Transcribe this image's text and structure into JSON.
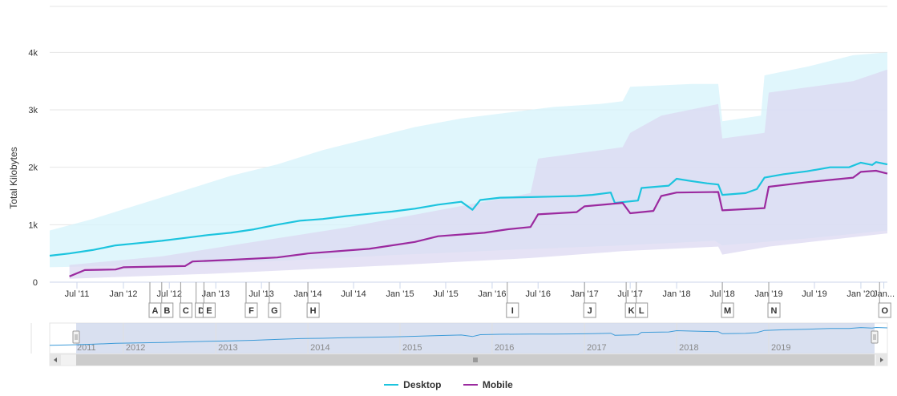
{
  "chart_data": {
    "type": "line",
    "ylabel": "Total Kilobytes",
    "ylim": [
      0,
      4800
    ],
    "xlim": [
      "2011-03-15",
      "2020-04-15"
    ],
    "y_ticks": [
      0,
      1000,
      2000,
      3000,
      4000
    ],
    "y_tick_labels": [
      "0",
      "1k",
      "2k",
      "3k",
      "4k"
    ],
    "x_ticks": [
      {
        "date": "2011-07-01",
        "label": "Jul '11"
      },
      {
        "date": "2012-01-01",
        "label": "Jan '12"
      },
      {
        "date": "2012-07-01",
        "label": "Jul '12"
      },
      {
        "date": "2013-01-01",
        "label": "Jan '13"
      },
      {
        "date": "2013-07-01",
        "label": "Jul '13"
      },
      {
        "date": "2014-01-01",
        "label": "Jan '14"
      },
      {
        "date": "2014-07-01",
        "label": "Jul '14"
      },
      {
        "date": "2015-01-01",
        "label": "Jan '15"
      },
      {
        "date": "2015-07-01",
        "label": "Jul '15"
      },
      {
        "date": "2016-01-01",
        "label": "Jan '16"
      },
      {
        "date": "2016-07-01",
        "label": "Jul '16"
      },
      {
        "date": "2017-01-01",
        "label": "Jan '17"
      },
      {
        "date": "2017-07-01",
        "label": "Jul '17"
      },
      {
        "date": "2018-01-01",
        "label": "Jan '18"
      },
      {
        "date": "2018-07-01",
        "label": "Jul '18"
      },
      {
        "date": "2019-01-01",
        "label": "Jan '19"
      },
      {
        "date": "2019-07-01",
        "label": "Jul '19"
      },
      {
        "date": "2020-01-01",
        "label": "Jan '20"
      },
      {
        "date": "2020-04-01",
        "label": "Jan..."
      }
    ],
    "grid": true,
    "legend_position": "bottom-center",
    "series": [
      {
        "name": "Desktop",
        "color": "#1cc4de",
        "band_color": "#d6f3fb",
        "points": [
          [
            "2011-03-15",
            460
          ],
          [
            "2011-06-01",
            500
          ],
          [
            "2011-09-01",
            560
          ],
          [
            "2011-12-01",
            640
          ],
          [
            "2012-03-01",
            680
          ],
          [
            "2012-06-01",
            720
          ],
          [
            "2012-09-01",
            770
          ],
          [
            "2012-12-01",
            820
          ],
          [
            "2013-03-01",
            860
          ],
          [
            "2013-06-01",
            920
          ],
          [
            "2013-09-01",
            1000
          ],
          [
            "2013-12-01",
            1070
          ],
          [
            "2014-03-01",
            1100
          ],
          [
            "2014-06-01",
            1150
          ],
          [
            "2014-09-01",
            1190
          ],
          [
            "2014-12-01",
            1230
          ],
          [
            "2015-03-01",
            1280
          ],
          [
            "2015-06-01",
            1350
          ],
          [
            "2015-09-01",
            1400
          ],
          [
            "2015-10-15",
            1260
          ],
          [
            "2015-11-15",
            1430
          ],
          [
            "2016-02-01",
            1470
          ],
          [
            "2016-06-01",
            1480
          ],
          [
            "2016-09-01",
            1490
          ],
          [
            "2016-12-01",
            1500
          ],
          [
            "2017-02-01",
            1520
          ],
          [
            "2017-04-15",
            1560
          ],
          [
            "2017-05-01",
            1380
          ],
          [
            "2017-08-01",
            1420
          ],
          [
            "2017-08-15",
            1640
          ],
          [
            "2017-12-01",
            1680
          ],
          [
            "2018-01-01",
            1800
          ],
          [
            "2018-03-01",
            1760
          ],
          [
            "2018-05-01",
            1720
          ],
          [
            "2018-06-15",
            1700
          ],
          [
            "2018-07-01",
            1520
          ],
          [
            "2018-10-01",
            1550
          ],
          [
            "2018-11-15",
            1620
          ],
          [
            "2018-12-15",
            1820
          ],
          [
            "2019-03-01",
            1880
          ],
          [
            "2019-06-01",
            1930
          ],
          [
            "2019-09-01",
            2000
          ],
          [
            "2019-11-15",
            2000
          ],
          [
            "2020-01-01",
            2080
          ],
          [
            "2020-02-15",
            2040
          ],
          [
            "2020-03-01",
            2090
          ],
          [
            "2020-04-15",
            2050
          ]
        ],
        "band_low": [
          [
            "2011-03-15",
            260
          ],
          [
            "2012-06-01",
            300
          ],
          [
            "2013-09-01",
            370
          ],
          [
            "2014-12-01",
            470
          ],
          [
            "2016-03-01",
            560
          ],
          [
            "2017-06-01",
            640
          ],
          [
            "2018-06-01",
            720
          ],
          [
            "2018-07-01",
            640
          ],
          [
            "2019-06-01",
            760
          ],
          [
            "2020-04-15",
            900
          ]
        ],
        "band_high": [
          [
            "2011-03-15",
            900
          ],
          [
            "2011-09-01",
            1100
          ],
          [
            "2012-03-01",
            1350
          ],
          [
            "2012-09-01",
            1600
          ],
          [
            "2013-03-01",
            1850
          ],
          [
            "2013-09-01",
            2050
          ],
          [
            "2014-03-01",
            2300
          ],
          [
            "2014-09-01",
            2500
          ],
          [
            "2015-03-01",
            2700
          ],
          [
            "2015-09-01",
            2850
          ],
          [
            "2016-03-01",
            2950
          ],
          [
            "2016-09-01",
            3050
          ],
          [
            "2017-03-01",
            3100
          ],
          [
            "2017-06-01",
            3150
          ],
          [
            "2017-07-01",
            3400
          ],
          [
            "2018-03-01",
            3450
          ],
          [
            "2018-06-15",
            3450
          ],
          [
            "2018-07-01",
            2800
          ],
          [
            "2018-12-01",
            2900
          ],
          [
            "2018-12-15",
            3600
          ],
          [
            "2019-06-01",
            3750
          ],
          [
            "2019-12-01",
            3950
          ],
          [
            "2020-04-15",
            4000
          ]
        ]
      },
      {
        "name": "Mobile",
        "color": "#9b2a9f",
        "band_color": "#dcd8f2",
        "points": [
          [
            "2011-06-01",
            100
          ],
          [
            "2011-08-01",
            210
          ],
          [
            "2011-12-01",
            220
          ],
          [
            "2012-01-01",
            260
          ],
          [
            "2012-09-01",
            280
          ],
          [
            "2012-10-01",
            360
          ],
          [
            "2013-03-01",
            390
          ],
          [
            "2013-09-01",
            430
          ],
          [
            "2014-01-01",
            500
          ],
          [
            "2014-09-01",
            580
          ],
          [
            "2015-03-01",
            700
          ],
          [
            "2015-06-01",
            800
          ],
          [
            "2015-12-01",
            860
          ],
          [
            "2016-03-01",
            920
          ],
          [
            "2016-06-01",
            960
          ],
          [
            "2016-07-01",
            1180
          ],
          [
            "2016-12-01",
            1220
          ],
          [
            "2017-01-01",
            1320
          ],
          [
            "2017-06-01",
            1380
          ],
          [
            "2017-07-01",
            1200
          ],
          [
            "2017-10-01",
            1240
          ],
          [
            "2017-11-01",
            1500
          ],
          [
            "2018-01-01",
            1560
          ],
          [
            "2018-06-15",
            1570
          ],
          [
            "2018-07-01",
            1250
          ],
          [
            "2018-12-15",
            1290
          ],
          [
            "2019-01-01",
            1660
          ],
          [
            "2019-06-01",
            1740
          ],
          [
            "2019-12-01",
            1820
          ],
          [
            "2020-01-01",
            1920
          ],
          [
            "2020-03-01",
            1940
          ],
          [
            "2020-04-15",
            1890
          ]
        ],
        "band_low": [
          [
            "2011-06-01",
            60
          ],
          [
            "2013-01-01",
            150
          ],
          [
            "2015-01-01",
            300
          ],
          [
            "2016-06-01",
            420
          ],
          [
            "2017-06-01",
            540
          ],
          [
            "2018-06-15",
            620
          ],
          [
            "2018-07-01",
            480
          ],
          [
            "2019-01-01",
            620
          ],
          [
            "2020-04-15",
            850
          ]
        ],
        "band_high": [
          [
            "2011-06-01",
            300
          ],
          [
            "2012-06-01",
            450
          ],
          [
            "2013-06-01",
            700
          ],
          [
            "2014-06-01",
            950
          ],
          [
            "2015-06-01",
            1250
          ],
          [
            "2016-06-01",
            1550
          ],
          [
            "2016-07-01",
            2150
          ],
          [
            "2017-06-01",
            2350
          ],
          [
            "2017-07-01",
            2600
          ],
          [
            "2017-11-01",
            2900
          ],
          [
            "2018-06-15",
            3100
          ],
          [
            "2018-07-01",
            2500
          ],
          [
            "2018-12-15",
            2600
          ],
          [
            "2019-01-01",
            3300
          ],
          [
            "2019-12-01",
            3500
          ],
          [
            "2020-04-15",
            3700
          ]
        ]
      }
    ],
    "flags": [
      {
        "label": "A",
        "date": "2012-04-15"
      },
      {
        "label": "B",
        "date": "2012-06-01"
      },
      {
        "label": "C",
        "date": "2012-08-15"
      },
      {
        "label": "D",
        "date": "2012-10-15"
      },
      {
        "label": "E",
        "date": "2012-11-15"
      },
      {
        "label": "F",
        "date": "2013-05-01"
      },
      {
        "label": "G",
        "date": "2013-08-01"
      },
      {
        "label": "H",
        "date": "2014-01-01"
      },
      {
        "label": "I",
        "date": "2016-03-01"
      },
      {
        "label": "J",
        "date": "2017-01-01"
      },
      {
        "label": "K",
        "date": "2017-06-15"
      },
      {
        "label": "L",
        "date": "2017-07-25"
      },
      {
        "label": "M",
        "date": "2018-07-01"
      },
      {
        "label": "N",
        "date": "2019-01-01"
      },
      {
        "label": "O",
        "date": "2020-03-15"
      }
    ],
    "navigator": {
      "year_labels": [
        "2011",
        "2012",
        "2013",
        "2014",
        "2015",
        "2016",
        "2017",
        "2018",
        "2019"
      ],
      "selected_range": [
        "2011-03-15",
        "2020-04-15"
      ]
    }
  },
  "legend": {
    "desktop_label": "Desktop",
    "mobile_label": "Mobile",
    "desktop_color": "#1cc4de",
    "mobile_color": "#9b2a9f"
  }
}
